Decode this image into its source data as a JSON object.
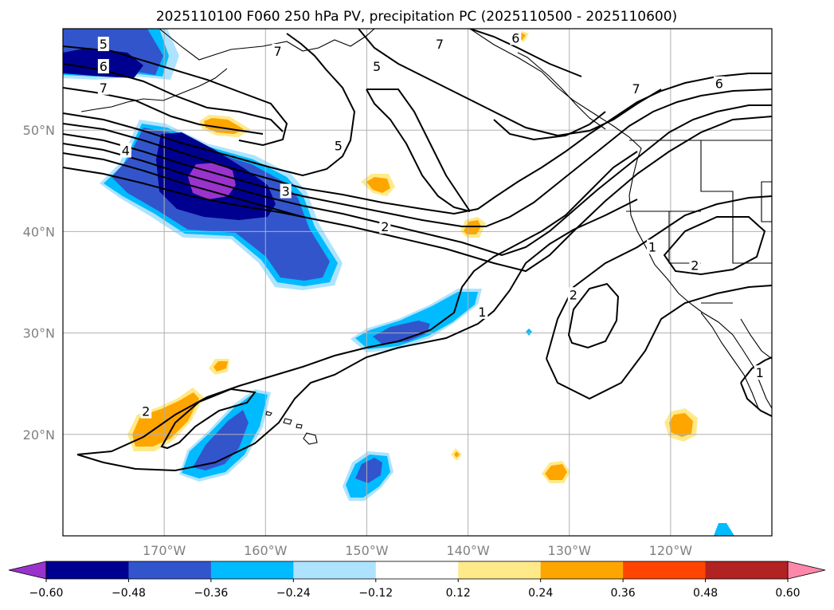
{
  "title": "2025110100 F060 250 hPa PV, precipitation PC (2025110500 - 2025110600)",
  "map": {
    "lon_range": [
      -180,
      -110
    ],
    "lat_range": [
      10,
      60
    ],
    "lon_ticks": [
      {
        "lon": -170,
        "label": "170°W"
      },
      {
        "lon": -160,
        "label": "160°W"
      },
      {
        "lon": -150,
        "label": "150°W"
      },
      {
        "lon": -140,
        "label": "140°W"
      },
      {
        "lon": -130,
        "label": "130°W"
      },
      {
        "lon": -120,
        "label": "120°W"
      }
    ],
    "lat_ticks": [
      {
        "lat": 20,
        "label": "20°N"
      },
      {
        "lat": 30,
        "label": "30°N"
      },
      {
        "lat": 40,
        "label": "40°N"
      },
      {
        "lat": 50,
        "label": "50°N"
      }
    ],
    "grid": true,
    "contour_labels": [
      {
        "text": "5",
        "lon": -176,
        "lat": 58.5
      },
      {
        "text": "6",
        "lon": -176,
        "lat": 56.3
      },
      {
        "text": "7",
        "lon": -176,
        "lat": 54.2
      },
      {
        "text": "4",
        "lon": -173.8,
        "lat": 48
      },
      {
        "text": "3",
        "lon": -158,
        "lat": 44
      },
      {
        "text": "5",
        "lon": -152.8,
        "lat": 48.5
      },
      {
        "text": "7",
        "lon": -158.8,
        "lat": 57.8
      },
      {
        "text": "5",
        "lon": -149,
        "lat": 56.3
      },
      {
        "text": "7",
        "lon": -142.8,
        "lat": 58.5
      },
      {
        "text": "6",
        "lon": -135.3,
        "lat": 59.1
      },
      {
        "text": "7",
        "lon": -123.4,
        "lat": 54.1
      },
      {
        "text": "6",
        "lon": -115.2,
        "lat": 54.6
      },
      {
        "text": "2",
        "lon": -148.2,
        "lat": 40.5
      },
      {
        "text": "1",
        "lon": -138.6,
        "lat": 32.1
      },
      {
        "text": "1",
        "lon": -121.8,
        "lat": 38.5
      },
      {
        "text": "2",
        "lon": -129.6,
        "lat": 33.8
      },
      {
        "text": "2",
        "lon": -117.6,
        "lat": 36.7
      },
      {
        "text": "2",
        "lon": -171.8,
        "lat": 22.3
      },
      {
        "text": "1",
        "lon": -111.2,
        "lat": 26.1
      }
    ]
  },
  "colorbar": {
    "levels": [
      -0.6,
      -0.48,
      -0.36,
      -0.24,
      -0.12,
      0.12,
      0.24,
      0.36,
      0.48,
      0.6
    ],
    "labels": [
      "−0.60",
      "−0.48",
      "−0.36",
      "−0.24",
      "−0.12",
      "0.12",
      "0.24",
      "0.36",
      "0.48",
      "0.60"
    ],
    "colors": [
      "#9933cc",
      "#000090",
      "#3355cc",
      "#00bbff",
      "#aee3ff",
      "#ffffff",
      "#ffea8a",
      "#ffa500",
      "#ff4500",
      "#b22222",
      "#ff88aa"
    ],
    "extend": "both"
  }
}
